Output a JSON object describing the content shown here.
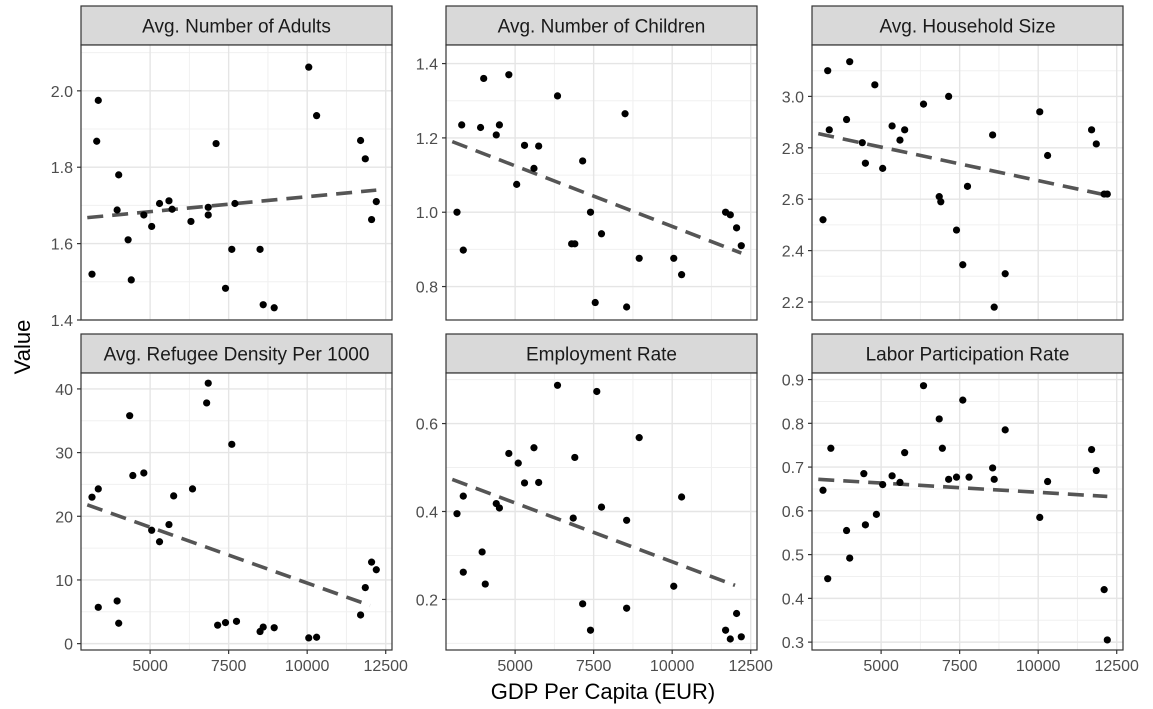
{
  "chart_data": {
    "type": "scatter",
    "xlabel": "GDP Per Capita (EUR)",
    "ylabel": "Value",
    "x_ticks": [
      5000,
      7500,
      10000,
      12500
    ],
    "xlim": [
      2800,
      12700
    ],
    "grid": true,
    "style": {
      "strip_fill": "#d9d9d9",
      "strip_border": "#333333",
      "panel_border": "#333333",
      "grid_major": "#e5e5e5",
      "point_color": "#000000",
      "trend_color": "#555555"
    },
    "panels": [
      {
        "title": "Avg. Number of Adults",
        "ylim": [
          1.4,
          2.12
        ],
        "y_ticks": [
          1.4,
          1.6,
          1.8,
          2.0
        ],
        "y_tick_labels": [
          "1.4",
          "1.6",
          "1.8",
          "2.0"
        ],
        "trend": {
          "x": [
            3000,
            12200
          ],
          "y": [
            1.668,
            1.74
          ]
        },
        "points": [
          [
            3150,
            1.52
          ],
          [
            3350,
            1.975
          ],
          [
            3300,
            1.868
          ],
          [
            4000,
            1.78
          ],
          [
            3950,
            1.688
          ],
          [
            4300,
            1.61
          ],
          [
            4400,
            1.505
          ],
          [
            4800,
            1.675
          ],
          [
            5050,
            1.645
          ],
          [
            5300,
            1.705
          ],
          [
            5600,
            1.712
          ],
          [
            5700,
            1.69
          ],
          [
            6300,
            1.658
          ],
          [
            6850,
            1.695
          ],
          [
            6850,
            1.675
          ],
          [
            7100,
            1.862
          ],
          [
            7400,
            1.483
          ],
          [
            7600,
            1.585
          ],
          [
            7700,
            1.705
          ],
          [
            8500,
            1.585
          ],
          [
            8600,
            1.44
          ],
          [
            8950,
            1.432
          ],
          [
            10050,
            2.062
          ],
          [
            10300,
            1.935
          ],
          [
            11700,
            1.87
          ],
          [
            11850,
            1.822
          ],
          [
            12050,
            1.663
          ],
          [
            12200,
            1.71
          ]
        ]
      },
      {
        "title": "Avg. Number of Children",
        "ylim": [
          0.71,
          1.45
        ],
        "y_ticks": [
          0.8,
          1.0,
          1.2,
          1.4
        ],
        "y_tick_labels": [
          "0.8",
          "1.0",
          "1.2",
          "1.4"
        ],
        "trend": {
          "x": [
            3000,
            12200
          ],
          "y": [
            1.19,
            0.89
          ]
        },
        "points": [
          [
            3150,
            1.0
          ],
          [
            3300,
            1.235
          ],
          [
            3350,
            0.898
          ],
          [
            3900,
            1.228
          ],
          [
            4000,
            1.36
          ],
          [
            4400,
            1.208
          ],
          [
            4500,
            1.235
          ],
          [
            4800,
            1.37
          ],
          [
            5050,
            1.075
          ],
          [
            5300,
            1.18
          ],
          [
            5600,
            1.118
          ],
          [
            5750,
            1.178
          ],
          [
            6350,
            1.313
          ],
          [
            6800,
            0.915
          ],
          [
            6900,
            0.915
          ],
          [
            7150,
            1.138
          ],
          [
            7400,
            1.0
          ],
          [
            7550,
            0.757
          ],
          [
            7750,
            0.942
          ],
          [
            8500,
            1.265
          ],
          [
            8550,
            0.745
          ],
          [
            8950,
            0.876
          ],
          [
            10050,
            0.876
          ],
          [
            10300,
            0.832
          ],
          [
            11700,
            1.0
          ],
          [
            11850,
            0.993
          ],
          [
            12050,
            0.958
          ],
          [
            12200,
            0.91
          ]
        ]
      },
      {
        "title": "Avg. Household Size",
        "ylim": [
          2.13,
          3.2
        ],
        "y_ticks": [
          2.2,
          2.4,
          2.6,
          2.8,
          3.0
        ],
        "y_tick_labels": [
          "2.2",
          "2.4",
          "2.6",
          "2.8",
          "3.0"
        ],
        "trend": {
          "x": [
            3000,
            12200
          ],
          "y": [
            2.855,
            2.615
          ]
        },
        "points": [
          [
            3150,
            2.52
          ],
          [
            3300,
            3.1
          ],
          [
            3350,
            2.87
          ],
          [
            3900,
            2.91
          ],
          [
            4000,
            3.135
          ],
          [
            4400,
            2.82
          ],
          [
            4500,
            2.74
          ],
          [
            4800,
            3.045
          ],
          [
            5050,
            2.72
          ],
          [
            5350,
            2.885
          ],
          [
            5600,
            2.83
          ],
          [
            5750,
            2.87
          ],
          [
            6350,
            2.97
          ],
          [
            6850,
            2.61
          ],
          [
            6900,
            2.59
          ],
          [
            7150,
            3.0
          ],
          [
            7400,
            2.48
          ],
          [
            7600,
            2.345
          ],
          [
            7750,
            2.65
          ],
          [
            8550,
            2.85
          ],
          [
            8600,
            2.18
          ],
          [
            8950,
            2.31
          ],
          [
            10050,
            2.94
          ],
          [
            10300,
            2.77
          ],
          [
            11700,
            2.87
          ],
          [
            11850,
            2.815
          ],
          [
            12100,
            2.62
          ],
          [
            12200,
            2.62
          ]
        ]
      },
      {
        "title": "Avg. Refugee Density Per 1000",
        "ylim": [
          -1.0,
          42.5
        ],
        "y_ticks": [
          0,
          10,
          20,
          30,
          40
        ],
        "y_tick_labels": [
          "0",
          "10",
          "20",
          "30",
          "40"
        ],
        "trend": {
          "x": [
            3000,
            12000
          ],
          "y": [
            21.8,
            6.0
          ]
        },
        "points": [
          [
            3150,
            23.0
          ],
          [
            3350,
            24.3
          ],
          [
            3350,
            5.7
          ],
          [
            3950,
            6.7
          ],
          [
            4000,
            3.2
          ],
          [
            4350,
            35.8
          ],
          [
            4450,
            26.4
          ],
          [
            4800,
            26.8
          ],
          [
            5050,
            17.8
          ],
          [
            5300,
            16.0
          ],
          [
            5600,
            18.7
          ],
          [
            5750,
            23.2
          ],
          [
            6350,
            24.3
          ],
          [
            6800,
            37.8
          ],
          [
            6850,
            40.9
          ],
          [
            7150,
            2.9
          ],
          [
            7400,
            3.3
          ],
          [
            7600,
            31.3
          ],
          [
            7750,
            3.5
          ],
          [
            8500,
            1.9
          ],
          [
            8600,
            2.6
          ],
          [
            8950,
            2.5
          ],
          [
            10050,
            0.9
          ],
          [
            10300,
            1.0
          ],
          [
            11700,
            4.5
          ],
          [
            11850,
            8.8
          ],
          [
            12050,
            12.8
          ],
          [
            12200,
            11.6
          ]
        ]
      },
      {
        "title": "Employment Rate",
        "ylim": [
          0.085,
          0.715
        ],
        "y_ticks": [
          0.2,
          0.4,
          0.6
        ],
        "y_tick_labels": [
          "0.2",
          "0.4",
          "0.6"
        ],
        "trend": {
          "x": [
            3000,
            12000
          ],
          "y": [
            0.473,
            0.232
          ]
        },
        "points": [
          [
            3150,
            0.395
          ],
          [
            3350,
            0.262
          ],
          [
            3350,
            0.435
          ],
          [
            3950,
            0.308
          ],
          [
            4050,
            0.235
          ],
          [
            4400,
            0.418
          ],
          [
            4500,
            0.408
          ],
          [
            4800,
            0.532
          ],
          [
            5100,
            0.51
          ],
          [
            5300,
            0.465
          ],
          [
            5600,
            0.545
          ],
          [
            5750,
            0.466
          ],
          [
            6350,
            0.687
          ],
          [
            6850,
            0.385
          ],
          [
            6900,
            0.523
          ],
          [
            7150,
            0.19
          ],
          [
            7400,
            0.13
          ],
          [
            7600,
            0.673
          ],
          [
            7750,
            0.41
          ],
          [
            8550,
            0.38
          ],
          [
            8550,
            0.18
          ],
          [
            8950,
            0.568
          ],
          [
            10050,
            0.23
          ],
          [
            10300,
            0.433
          ],
          [
            11700,
            0.13
          ],
          [
            11850,
            0.11
          ],
          [
            12050,
            0.168
          ],
          [
            12200,
            0.115
          ]
        ]
      },
      {
        "title": "Labor Participation Rate",
        "ylim": [
          0.282,
          0.915
        ],
        "y_ticks": [
          0.3,
          0.4,
          0.5,
          0.6,
          0.7,
          0.8,
          0.9
        ],
        "y_tick_labels": [
          "0.3",
          "0.4",
          "0.5",
          "0.6",
          "0.7",
          "0.8",
          "0.9"
        ],
        "trend": {
          "x": [
            3000,
            12200
          ],
          "y": [
            0.672,
            0.633
          ]
        },
        "points": [
          [
            3150,
            0.647
          ],
          [
            3300,
            0.445
          ],
          [
            3400,
            0.743
          ],
          [
            3900,
            0.555
          ],
          [
            4000,
            0.492
          ],
          [
            4450,
            0.685
          ],
          [
            4500,
            0.568
          ],
          [
            4850,
            0.592
          ],
          [
            5050,
            0.66
          ],
          [
            5350,
            0.68
          ],
          [
            5600,
            0.665
          ],
          [
            5750,
            0.733
          ],
          [
            6350,
            0.886
          ],
          [
            6850,
            0.81
          ],
          [
            6950,
            0.743
          ],
          [
            7150,
            0.672
          ],
          [
            7400,
            0.677
          ],
          [
            7600,
            0.853
          ],
          [
            7800,
            0.677
          ],
          [
            8550,
            0.698
          ],
          [
            8600,
            0.672
          ],
          [
            8950,
            0.785
          ],
          [
            10050,
            0.585
          ],
          [
            10300,
            0.667
          ],
          [
            11700,
            0.74
          ],
          [
            11850,
            0.692
          ],
          [
            12100,
            0.42
          ],
          [
            12200,
            0.305
          ]
        ]
      }
    ]
  }
}
